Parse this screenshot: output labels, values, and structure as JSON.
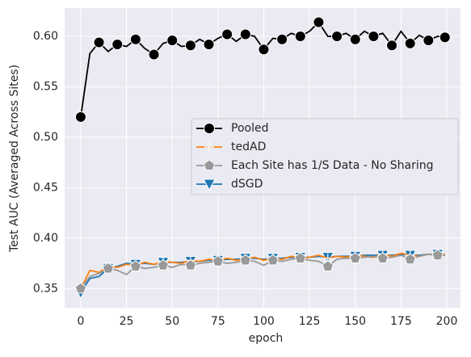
{
  "chart_data": {
    "type": "line",
    "xlabel": "epoch",
    "ylabel": "Test AUC (Averaged Across Sites)",
    "x": [
      0,
      5,
      10,
      15,
      20,
      25,
      30,
      35,
      40,
      45,
      50,
      55,
      60,
      65,
      70,
      75,
      80,
      85,
      90,
      95,
      100,
      105,
      110,
      115,
      120,
      125,
      130,
      135,
      140,
      145,
      150,
      155,
      160,
      165,
      170,
      175,
      180,
      185,
      190,
      195,
      199
    ],
    "series": [
      {
        "name": "dSGD",
        "color": "#1f77b4",
        "marker": "triangle-down",
        "markevery": 3,
        "values": [
          0.346,
          0.36,
          0.362,
          0.37,
          0.372,
          0.375,
          0.374,
          0.375,
          0.374,
          0.376,
          0.376,
          0.376,
          0.377,
          0.377,
          0.378,
          0.378,
          0.379,
          0.379,
          0.38,
          0.38,
          0.379,
          0.38,
          0.38,
          0.381,
          0.381,
          0.381,
          0.382,
          0.381,
          0.382,
          0.382,
          0.382,
          0.383,
          0.383,
          0.383,
          0.383,
          0.384,
          0.383,
          0.383,
          0.384,
          0.384,
          0.384
        ]
      },
      {
        "name": "tedAD",
        "color": "#ff7f0e",
        "marker": "plus",
        "markevery": 3,
        "values": [
          0.35,
          0.368,
          0.366,
          0.372,
          0.371,
          0.374,
          0.373,
          0.376,
          0.374,
          0.377,
          0.376,
          0.375,
          0.378,
          0.377,
          0.379,
          0.378,
          0.38,
          0.378,
          0.379,
          0.381,
          0.378,
          0.38,
          0.379,
          0.382,
          0.38,
          0.381,
          0.383,
          0.38,
          0.382,
          0.381,
          0.383,
          0.382,
          0.381,
          0.384,
          0.382,
          0.385,
          0.383,
          0.382,
          0.384,
          0.383,
          0.384
        ]
      },
      {
        "name": "Each Site has 1/S Data - No Sharing",
        "color": "#999999",
        "marker": "pentagon",
        "markevery": 3,
        "values": [
          0.35,
          0.362,
          0.365,
          0.37,
          0.368,
          0.364,
          0.372,
          0.37,
          0.371,
          0.373,
          0.371,
          0.374,
          0.373,
          0.375,
          0.376,
          0.377,
          0.375,
          0.376,
          0.378,
          0.377,
          0.373,
          0.378,
          0.377,
          0.379,
          0.38,
          0.378,
          0.377,
          0.372,
          0.379,
          0.38,
          0.38,
          0.381,
          0.382,
          0.38,
          0.381,
          0.383,
          0.379,
          0.382,
          0.384,
          0.383,
          0.383
        ]
      },
      {
        "name": "Pooled",
        "color": "#000000",
        "marker": "circle",
        "markevery": 2,
        "values": [
          0.52,
          0.583,
          0.594,
          0.585,
          0.592,
          0.59,
          0.597,
          0.588,
          0.582,
          0.593,
          0.596,
          0.59,
          0.591,
          0.597,
          0.592,
          0.598,
          0.602,
          0.595,
          0.602,
          0.6,
          0.587,
          0.598,
          0.597,
          0.603,
          0.6,
          0.605,
          0.614,
          0.6,
          0.6,
          0.603,
          0.597,
          0.605,
          0.6,
          0.603,
          0.591,
          0.605,
          0.593,
          0.601,
          0.596,
          0.6,
          0.599
        ]
      }
    ],
    "legend_order": [
      "Pooled",
      "tedAD",
      "Each Site has 1/S Data - No Sharing",
      "dSGD"
    ],
    "xlim": [
      -8.8,
      207.5
    ],
    "ylim": [
      0.331,
      0.628
    ],
    "xticks": [
      0,
      25,
      50,
      75,
      100,
      125,
      150,
      175,
      200
    ],
    "yticks": [
      0.35,
      {
        "value": 0.4,
        "label": "0.40"
      },
      0.45,
      {
        "value": 0.5,
        "label": "0.50"
      },
      0.55,
      {
        "value": 0.6,
        "label": "0.60"
      }
    ],
    "grid": true,
    "legend": "center right"
  }
}
